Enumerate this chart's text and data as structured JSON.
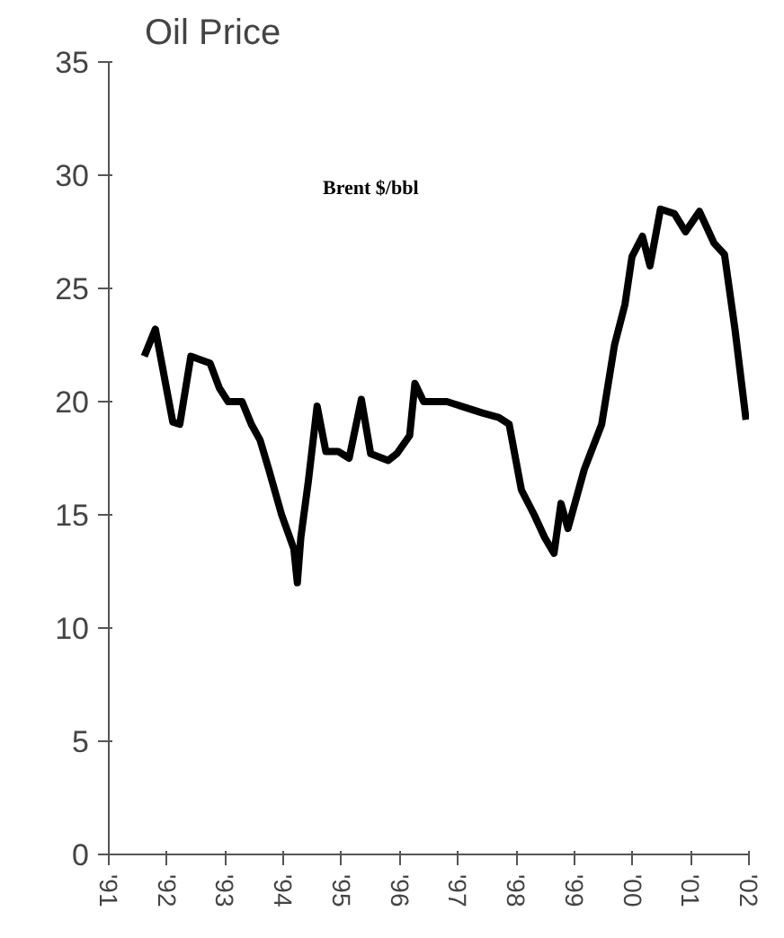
{
  "chart_data": {
    "type": "line",
    "title": "Oil Price",
    "x": [
      1991.61,
      1991.8,
      1992.1,
      1992.22,
      1992.41,
      1992.74,
      1992.9,
      1993.05,
      1993.29,
      1993.45,
      1993.6,
      1993.75,
      1993.97,
      1994.18,
      1994.24,
      1994.3,
      1994.43,
      1994.58,
      1994.73,
      1994.94,
      1995.13,
      1995.34,
      1995.5,
      1995.8,
      1995.95,
      1996.17,
      1996.26,
      1996.41,
      1996.81,
      1997.42,
      1997.7,
      1997.88,
      1998.09,
      1998.31,
      1998.49,
      1998.65,
      1998.77,
      1998.89,
      1999.17,
      1999.47,
      1999.69,
      1999.87,
      1999.99,
      2000.17,
      2000.3,
      2000.48,
      2000.72,
      2000.91,
      2001.15,
      2001.4,
      2001.58,
      2001.76,
      2001.95
    ],
    "series": [
      {
        "name": "Brent $/bbl",
        "color": "#000000",
        "values": [
          22,
          23.2,
          19.1,
          19,
          22,
          21.7,
          20.6,
          20,
          20,
          19,
          18.3,
          17,
          15,
          13.5,
          12,
          14,
          16.5,
          19.8,
          17.8,
          17.8,
          17.5,
          20.1,
          17.7,
          17.4,
          17.7,
          18.5,
          20.8,
          20,
          20,
          19.5,
          19.3,
          19,
          16.1,
          15,
          14,
          13.3,
          15.5,
          14.4,
          17,
          19,
          22.5,
          24.3,
          26.4,
          27.3,
          26,
          28.5,
          28.3,
          27.5,
          28.4,
          27,
          26.5,
          23.2,
          19.2
        ]
      }
    ],
    "xlim": [
      1991,
      2002
    ],
    "xticks": [
      {
        "value": 1991,
        "label": "'91"
      },
      {
        "value": 1992,
        "label": "'92"
      },
      {
        "value": 1993,
        "label": "'93"
      },
      {
        "value": 1994,
        "label": "'94"
      },
      {
        "value": 1995,
        "label": "'95"
      },
      {
        "value": 1996,
        "label": "'96"
      },
      {
        "value": 1997,
        "label": "'97"
      },
      {
        "value": 1998,
        "label": "'98"
      },
      {
        "value": 1999,
        "label": "'99"
      },
      {
        "value": 2000,
        "label": "'00"
      },
      {
        "value": 2001,
        "label": "'01"
      },
      {
        "value": 2002,
        "label": "'02"
      }
    ],
    "ylim": [
      0,
      35
    ],
    "yticks": [
      0,
      5,
      10,
      15,
      20,
      25,
      30,
      35
    ],
    "grid": false,
    "marker": "none",
    "line_style": "solid"
  }
}
